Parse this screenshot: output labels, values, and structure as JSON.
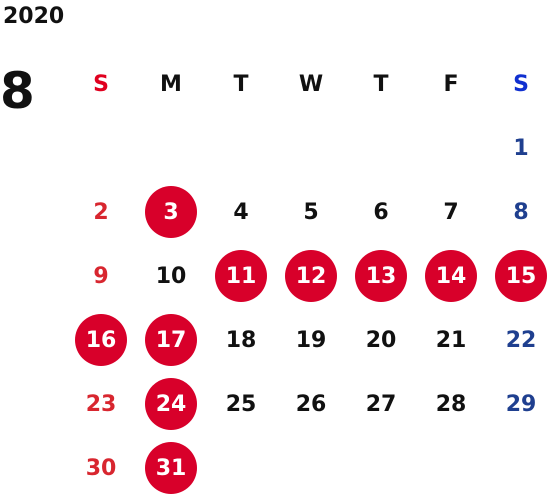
{
  "calendar": {
    "year": "2020",
    "month": "8",
    "weekdays": [
      "S",
      "M",
      "T",
      "W",
      "T",
      "F",
      "S"
    ],
    "first_weekday_index": 6,
    "days": [
      {
        "d": "1"
      },
      {
        "d": "2"
      },
      {
        "d": "3",
        "holiday": true
      },
      {
        "d": "4"
      },
      {
        "d": "5"
      },
      {
        "d": "6"
      },
      {
        "d": "7"
      },
      {
        "d": "8"
      },
      {
        "d": "9"
      },
      {
        "d": "10"
      },
      {
        "d": "11",
        "holiday": true
      },
      {
        "d": "12",
        "holiday": true
      },
      {
        "d": "13",
        "holiday": true
      },
      {
        "d": "14",
        "holiday": true
      },
      {
        "d": "15",
        "holiday": true
      },
      {
        "d": "16",
        "holiday": true
      },
      {
        "d": "17",
        "holiday": true
      },
      {
        "d": "18"
      },
      {
        "d": "19"
      },
      {
        "d": "20"
      },
      {
        "d": "21"
      },
      {
        "d": "22"
      },
      {
        "d": "23"
      },
      {
        "d": "24",
        "holiday": true
      },
      {
        "d": "25"
      },
      {
        "d": "26"
      },
      {
        "d": "27"
      },
      {
        "d": "28"
      },
      {
        "d": "29"
      },
      {
        "d": "30"
      },
      {
        "d": "31",
        "holiday": true
      }
    ]
  },
  "colors": {
    "holiday_circle": "#d8002a",
    "sunday_text": "#d8262f",
    "saturday_text": "#1f3f8f",
    "sunday_header": "#e0001f",
    "saturday_header": "#1030d0"
  }
}
